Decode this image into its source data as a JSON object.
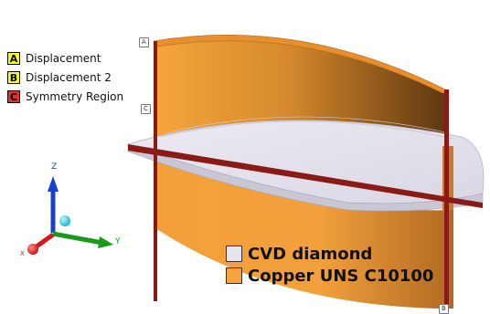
{
  "boundary_conditions": [
    {
      "key": "A",
      "label": "Displacement",
      "color": "#ffff00",
      "text_color": "#000000"
    },
    {
      "key": "B",
      "label": "Displacement 2",
      "color": "#ffff00",
      "text_color": "#000000"
    },
    {
      "key": "C",
      "label": "Symmetry Region",
      "color": "#e03030",
      "text_color": "#000000"
    }
  ],
  "materials": [
    {
      "label": "CVD diamond",
      "color": "#e6e4ef"
    },
    {
      "label": "Copper UNS C10100",
      "color": "#f5a33a"
    }
  ],
  "geometry_tags": {
    "a": "A",
    "b": "B",
    "c": "C"
  },
  "triad": {
    "z_label": "Z",
    "y_label": "Y",
    "x_label": "X"
  },
  "colors": {
    "copper_light": "#f6a23a",
    "copper_dark": "#6a3e10",
    "diamond": "#e6e4ef",
    "edge": "#7a1a14",
    "axis_z": "#1540d0",
    "axis_y": "#1a9a1a",
    "axis_x": "#d81818"
  }
}
